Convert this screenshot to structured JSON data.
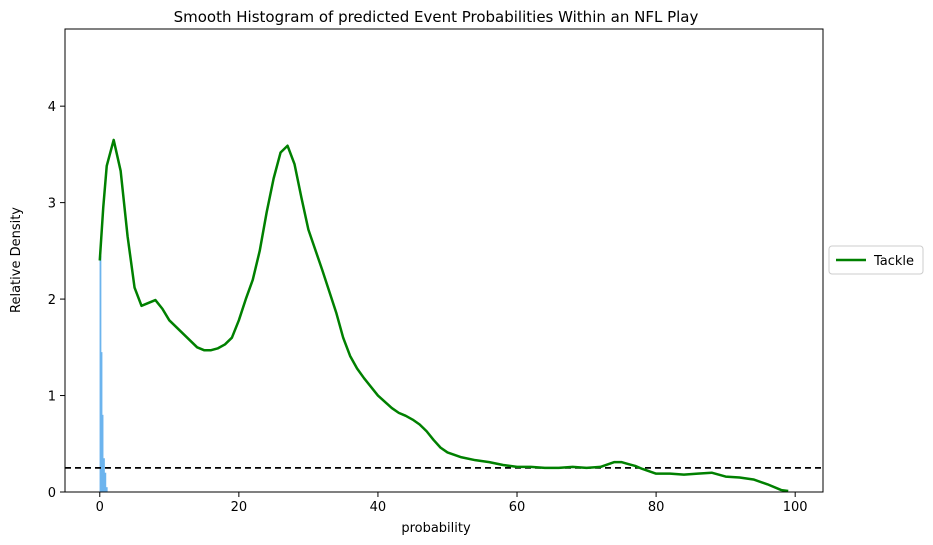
{
  "chart_data": {
    "type": "line",
    "title": "Smooth Histogram of predicted Event Probabilities Within an NFL Play",
    "xlabel": "probability",
    "ylabel": "Relative Density",
    "xlim": [
      -5,
      104
    ],
    "ylim": [
      0,
      4.8
    ],
    "xticks": [
      0,
      20,
      40,
      60,
      80,
      100
    ],
    "yticks": [
      0,
      1,
      2,
      3,
      4
    ],
    "grid": false,
    "legend_position": "right",
    "reference_line": {
      "y": 0.25,
      "style": "dashed",
      "color": "#000000"
    },
    "series": [
      {
        "name": "Tackle",
        "color": "#008000",
        "x": [
          0,
          0.5,
          1,
          2,
          3,
          4,
          5,
          6,
          7,
          8,
          9,
          10,
          12,
          14,
          15,
          16,
          17,
          18,
          19,
          20,
          21,
          22,
          23,
          24,
          25,
          26,
          27,
          28,
          29,
          30,
          32,
          34,
          35,
          36,
          37,
          38,
          40,
          42,
          43,
          44,
          45,
          46,
          47,
          48,
          49,
          50,
          52,
          54,
          56,
          58,
          60,
          62,
          64,
          66,
          68,
          70,
          72,
          74,
          75,
          76,
          77,
          78,
          80,
          82,
          84,
          86,
          88,
          90,
          92,
          94,
          96,
          98,
          99
        ],
        "values": [
          2.4,
          2.95,
          3.38,
          3.65,
          3.33,
          2.65,
          2.12,
          1.93,
          1.96,
          1.99,
          1.9,
          1.78,
          1.64,
          1.5,
          1.47,
          1.47,
          1.49,
          1.53,
          1.6,
          1.78,
          2.0,
          2.2,
          2.5,
          2.9,
          3.25,
          3.52,
          3.59,
          3.4,
          3.05,
          2.72,
          2.3,
          1.86,
          1.6,
          1.41,
          1.28,
          1.18,
          1.0,
          0.87,
          0.82,
          0.79,
          0.75,
          0.7,
          0.63,
          0.54,
          0.46,
          0.41,
          0.36,
          0.33,
          0.31,
          0.28,
          0.26,
          0.26,
          0.25,
          0.25,
          0.26,
          0.25,
          0.26,
          0.31,
          0.31,
          0.29,
          0.27,
          0.24,
          0.19,
          0.19,
          0.18,
          0.19,
          0.2,
          0.16,
          0.15,
          0.13,
          0.08,
          0.02,
          0.01
        ]
      }
    ],
    "histogram": {
      "color": "#6cb4ee",
      "bins": [
        {
          "x": 0.1,
          "value": 2.45
        },
        {
          "x": 0.25,
          "value": 1.45
        },
        {
          "x": 0.4,
          "value": 0.8
        },
        {
          "x": 0.6,
          "value": 0.35
        },
        {
          "x": 0.8,
          "value": 0.2
        },
        {
          "x": 1.0,
          "value": 0.05
        }
      ]
    }
  }
}
